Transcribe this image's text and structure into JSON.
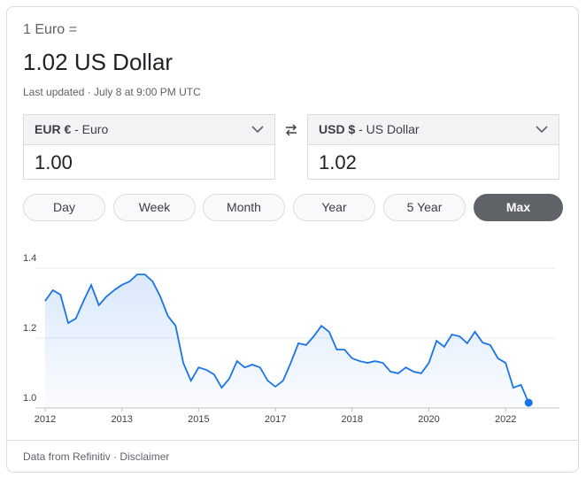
{
  "header": {
    "from_label": "1 Euro =",
    "result": "1.02 US Dollar",
    "updated": "Last updated · July 8 at 9:00 PM UTC"
  },
  "converter": {
    "from": {
      "code": "EUR €",
      "name": "- Euro",
      "amount": "1.00"
    },
    "to": {
      "code": "USD $",
      "name": "- US Dollar",
      "amount": "1.02"
    }
  },
  "ranges": [
    "Day",
    "Week",
    "Month",
    "Year",
    "5 Year",
    "Max"
  ],
  "footer": {
    "source": "Data from Refinitiv",
    "separator": " · ",
    "disclaimer": "Disclaimer"
  },
  "chart_data": {
    "type": "line",
    "color": "#1a73e8",
    "values": [
      1.306,
      1.337,
      1.324,
      1.243,
      1.256,
      1.306,
      1.352,
      1.294,
      1.319,
      1.337,
      1.352,
      1.362,
      1.382,
      1.382,
      1.362,
      1.319,
      1.263,
      1.235,
      1.129,
      1.078,
      1.116,
      1.109,
      1.096,
      1.058,
      1.084,
      1.134,
      1.116,
      1.124,
      1.116,
      1.078,
      1.061,
      1.078,
      1.129,
      1.185,
      1.18,
      1.205,
      1.235,
      1.218,
      1.167,
      1.167,
      1.142,
      1.134,
      1.129,
      1.134,
      1.129,
      1.104,
      1.099,
      1.116,
      1.104,
      1.099,
      1.129,
      1.192,
      1.175,
      1.21,
      1.205,
      1.185,
      1.218,
      1.187,
      1.18,
      1.142,
      1.129,
      1.058,
      1.066,
      1.015
    ],
    "ylim": [
      1.0,
      1.4
    ],
    "yticks": [
      {
        "value": 1.0,
        "label": "1.0"
      },
      1.2,
      1.4
    ],
    "xticks": [
      {
        "value": 0,
        "label": "2012"
      },
      {
        "value": 10,
        "label": "2013"
      },
      {
        "value": 20,
        "label": "2015"
      },
      {
        "value": 30,
        "label": "2017"
      },
      {
        "value": 40,
        "label": "2018"
      },
      {
        "value": 50,
        "label": "2020"
      },
      {
        "value": 60,
        "label": "2022"
      }
    ],
    "grid": true
  }
}
